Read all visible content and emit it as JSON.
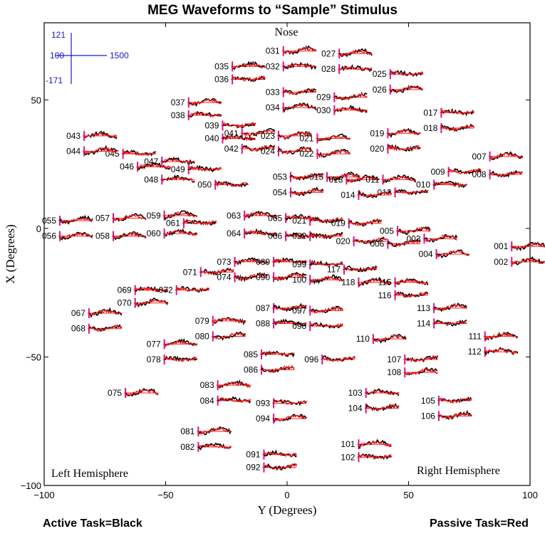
{
  "chart_data": {
    "type": "scatter",
    "title": "MEG Waveforms to “Sample” Stimulus",
    "xlabel": "Y (Degrees)",
    "ylabel": "X (Degrees)",
    "xlim": [
      -100,
      100
    ],
    "ylim": [
      -100,
      80
    ],
    "xticks": [
      -100,
      -50,
      0,
      50,
      100
    ],
    "yticks": [
      -100,
      -50,
      0,
      50
    ],
    "grid": false,
    "annotations": {
      "top": "Nose",
      "bottom_left": "Left Hemisphere",
      "bottom_right": "Right Hemisphere"
    },
    "scale_bar": {
      "top": "121",
      "mid": "100",
      "bottom": "-171",
      "right": "1500",
      "color": "#1a1acc"
    },
    "series": [
      {
        "name": "Active Task=Black",
        "color": "#000000"
      },
      {
        "name": "Passive Task=Red",
        "color": "#ff1a1a"
      }
    ],
    "sensors": [
      {
        "id": "031",
        "x": -8,
        "y": 69
      },
      {
        "id": "027",
        "x": 15,
        "y": 68
      },
      {
        "id": "035",
        "x": -29,
        "y": 63
      },
      {
        "id": "032",
        "x": -8,
        "y": 63
      },
      {
        "id": "028",
        "x": 15,
        "y": 62
      },
      {
        "id": "025",
        "x": 36,
        "y": 60
      },
      {
        "id": "036",
        "x": -29,
        "y": 58
      },
      {
        "id": "033",
        "x": -8,
        "y": 53
      },
      {
        "id": "029",
        "x": 13,
        "y": 51
      },
      {
        "id": "026",
        "x": 36,
        "y": 54
      },
      {
        "id": "037",
        "x": -47,
        "y": 49
      },
      {
        "id": "034",
        "x": -8,
        "y": 47
      },
      {
        "id": "030",
        "x": 13,
        "y": 46
      },
      {
        "id": "038",
        "x": -47,
        "y": 44
      },
      {
        "id": "017",
        "x": 57,
        "y": 45
      },
      {
        "id": "039",
        "x": -33,
        "y": 40
      },
      {
        "id": "018",
        "x": 57,
        "y": 39
      },
      {
        "id": "041",
        "x": -25,
        "y": 37
      },
      {
        "id": "023",
        "x": -10,
        "y": 36
      },
      {
        "id": "021",
        "x": 6,
        "y": 35
      },
      {
        "id": "019",
        "x": 35,
        "y": 37
      },
      {
        "id": "043",
        "x": -90,
        "y": 36
      },
      {
        "id": "040",
        "x": -33,
        "y": 35
      },
      {
        "id": "045",
        "x": -74,
        "y": 29
      },
      {
        "id": "020",
        "x": 35,
        "y": 31
      },
      {
        "id": "042",
        "x": -25,
        "y": 31
      },
      {
        "id": "024",
        "x": -10,
        "y": 30
      },
      {
        "id": "022",
        "x": 6,
        "y": 29
      },
      {
        "id": "044",
        "x": -90,
        "y": 30
      },
      {
        "id": "007",
        "x": 77,
        "y": 28
      },
      {
        "id": "046",
        "x": -68,
        "y": 24
      },
      {
        "id": "047",
        "x": -58,
        "y": 26
      },
      {
        "id": "049",
        "x": -47,
        "y": 23
      },
      {
        "id": "009",
        "x": 60,
        "y": 22
      },
      {
        "id": "008",
        "x": 77,
        "y": 21
      },
      {
        "id": "053",
        "x": -5,
        "y": 20
      },
      {
        "id": "015",
        "x": 10,
        "y": 20
      },
      {
        "id": "013",
        "x": 18,
        "y": 19
      },
      {
        "id": "011",
        "x": 33,
        "y": 19
      },
      {
        "id": "048",
        "x": -58,
        "y": 19
      },
      {
        "id": "010",
        "x": 54,
        "y": 17
      },
      {
        "id": "050",
        "x": -36,
        "y": 17
      },
      {
        "id": "012",
        "x": 38,
        "y": 14
      },
      {
        "id": "014",
        "x": 23,
        "y": 13
      },
      {
        "id": "054",
        "x": -5,
        "y": 14
      },
      {
        "id": "055",
        "x": -100,
        "y": 3
      },
      {
        "id": "057",
        "x": -78,
        "y": 4
      },
      {
        "id": "059",
        "x": -57,
        "y": 5
      },
      {
        "id": "063",
        "x": -24,
        "y": 5
      },
      {
        "id": "065",
        "x": -7,
        "y": 4
      },
      {
        "id": "061",
        "x": -49,
        "y": 2
      },
      {
        "id": "021b",
        "x": 3,
        "y": 3
      },
      {
        "id": "019b",
        "x": 19,
        "y": 2
      },
      {
        "id": "005",
        "x": 39,
        "y": -1
      },
      {
        "id": "003",
        "x": 50,
        "y": -4
      },
      {
        "id": "056",
        "x": -100,
        "y": -3
      },
      {
        "id": "058",
        "x": -78,
        "y": -3
      },
      {
        "id": "060",
        "x": -57,
        "y": -2
      },
      {
        "id": "064",
        "x": -24,
        "y": -2
      },
      {
        "id": "066",
        "x": -7,
        "y": -3
      },
      {
        "id": "022b",
        "x": 3,
        "y": -3
      },
      {
        "id": "020b",
        "x": 21,
        "y": -5
      },
      {
        "id": "006",
        "x": 35,
        "y": -6
      },
      {
        "id": "001",
        "x": 86,
        "y": -7
      },
      {
        "id": "004",
        "x": 55,
        "y": -10
      },
      {
        "id": "002",
        "x": 86,
        "y": -13
      },
      {
        "id": "073",
        "x": -28,
        "y": -13
      },
      {
        "id": "089",
        "x": -12,
        "y": -13
      },
      {
        "id": "099",
        "x": 3,
        "y": -14
      },
      {
        "id": "117",
        "x": 17,
        "y": -16
      },
      {
        "id": "071",
        "x": -42,
        "y": -17
      },
      {
        "id": "074",
        "x": -28,
        "y": -19
      },
      {
        "id": "090",
        "x": -12,
        "y": -19
      },
      {
        "id": "100",
        "x": 3,
        "y": -20
      },
      {
        "id": "118",
        "x": 23,
        "y": -21
      },
      {
        "id": "115",
        "x": 38,
        "y": -21
      },
      {
        "id": "069",
        "x": -69,
        "y": -24
      },
      {
        "id": "072",
        "x": -52,
        "y": -24
      },
      {
        "id": "116",
        "x": 38,
        "y": -26
      },
      {
        "id": "087",
        "x": -12,
        "y": -31
      },
      {
        "id": "097",
        "x": 3,
        "y": -32
      },
      {
        "id": "113",
        "x": 54,
        "y": -31
      },
      {
        "id": "070",
        "x": -69,
        "y": -29
      },
      {
        "id": "067",
        "x": -88,
        "y": -33
      },
      {
        "id": "079",
        "x": -37,
        "y": -36
      },
      {
        "id": "088",
        "x": -12,
        "y": -37
      },
      {
        "id": "098",
        "x": 3,
        "y": -38
      },
      {
        "id": "114",
        "x": 54,
        "y": -37
      },
      {
        "id": "068",
        "x": -88,
        "y": -39
      },
      {
        "id": "080",
        "x": -37,
        "y": -42
      },
      {
        "id": "110",
        "x": 29,
        "y": -43
      },
      {
        "id": "111",
        "x": 75,
        "y": -42
      },
      {
        "id": "077",
        "x": -57,
        "y": -45
      },
      {
        "id": "112",
        "x": 75,
        "y": -48
      },
      {
        "id": "085",
        "x": -17,
        "y": -49
      },
      {
        "id": "078",
        "x": -57,
        "y": -51
      },
      {
        "id": "096",
        "x": 8,
        "y": -51
      },
      {
        "id": "107",
        "x": 42,
        "y": -51
      },
      {
        "id": "086",
        "x": -17,
        "y": -55
      },
      {
        "id": "108",
        "x": 42,
        "y": -56
      },
      {
        "id": "075",
        "x": -73,
        "y": -64
      },
      {
        "id": "083",
        "x": -35,
        "y": -61
      },
      {
        "id": "103",
        "x": 26,
        "y": -64
      },
      {
        "id": "084",
        "x": -35,
        "y": -67
      },
      {
        "id": "093",
        "x": -12,
        "y": -68
      },
      {
        "id": "105",
        "x": 56,
        "y": -67
      },
      {
        "id": "104",
        "x": 26,
        "y": -70
      },
      {
        "id": "106",
        "x": 56,
        "y": -73
      },
      {
        "id": "094",
        "x": -12,
        "y": -74
      },
      {
        "id": "081",
        "x": -43,
        "y": -79
      },
      {
        "id": "101",
        "x": 23,
        "y": -84
      },
      {
        "id": "082",
        "x": -43,
        "y": -85
      },
      {
        "id": "091",
        "x": -16,
        "y": -88
      },
      {
        "id": "102",
        "x": 23,
        "y": -89
      },
      {
        "id": "092",
        "x": -16,
        "y": -93
      }
    ]
  },
  "footer": {
    "left": "Active Task=Black",
    "right": "Passive Task=Red"
  }
}
